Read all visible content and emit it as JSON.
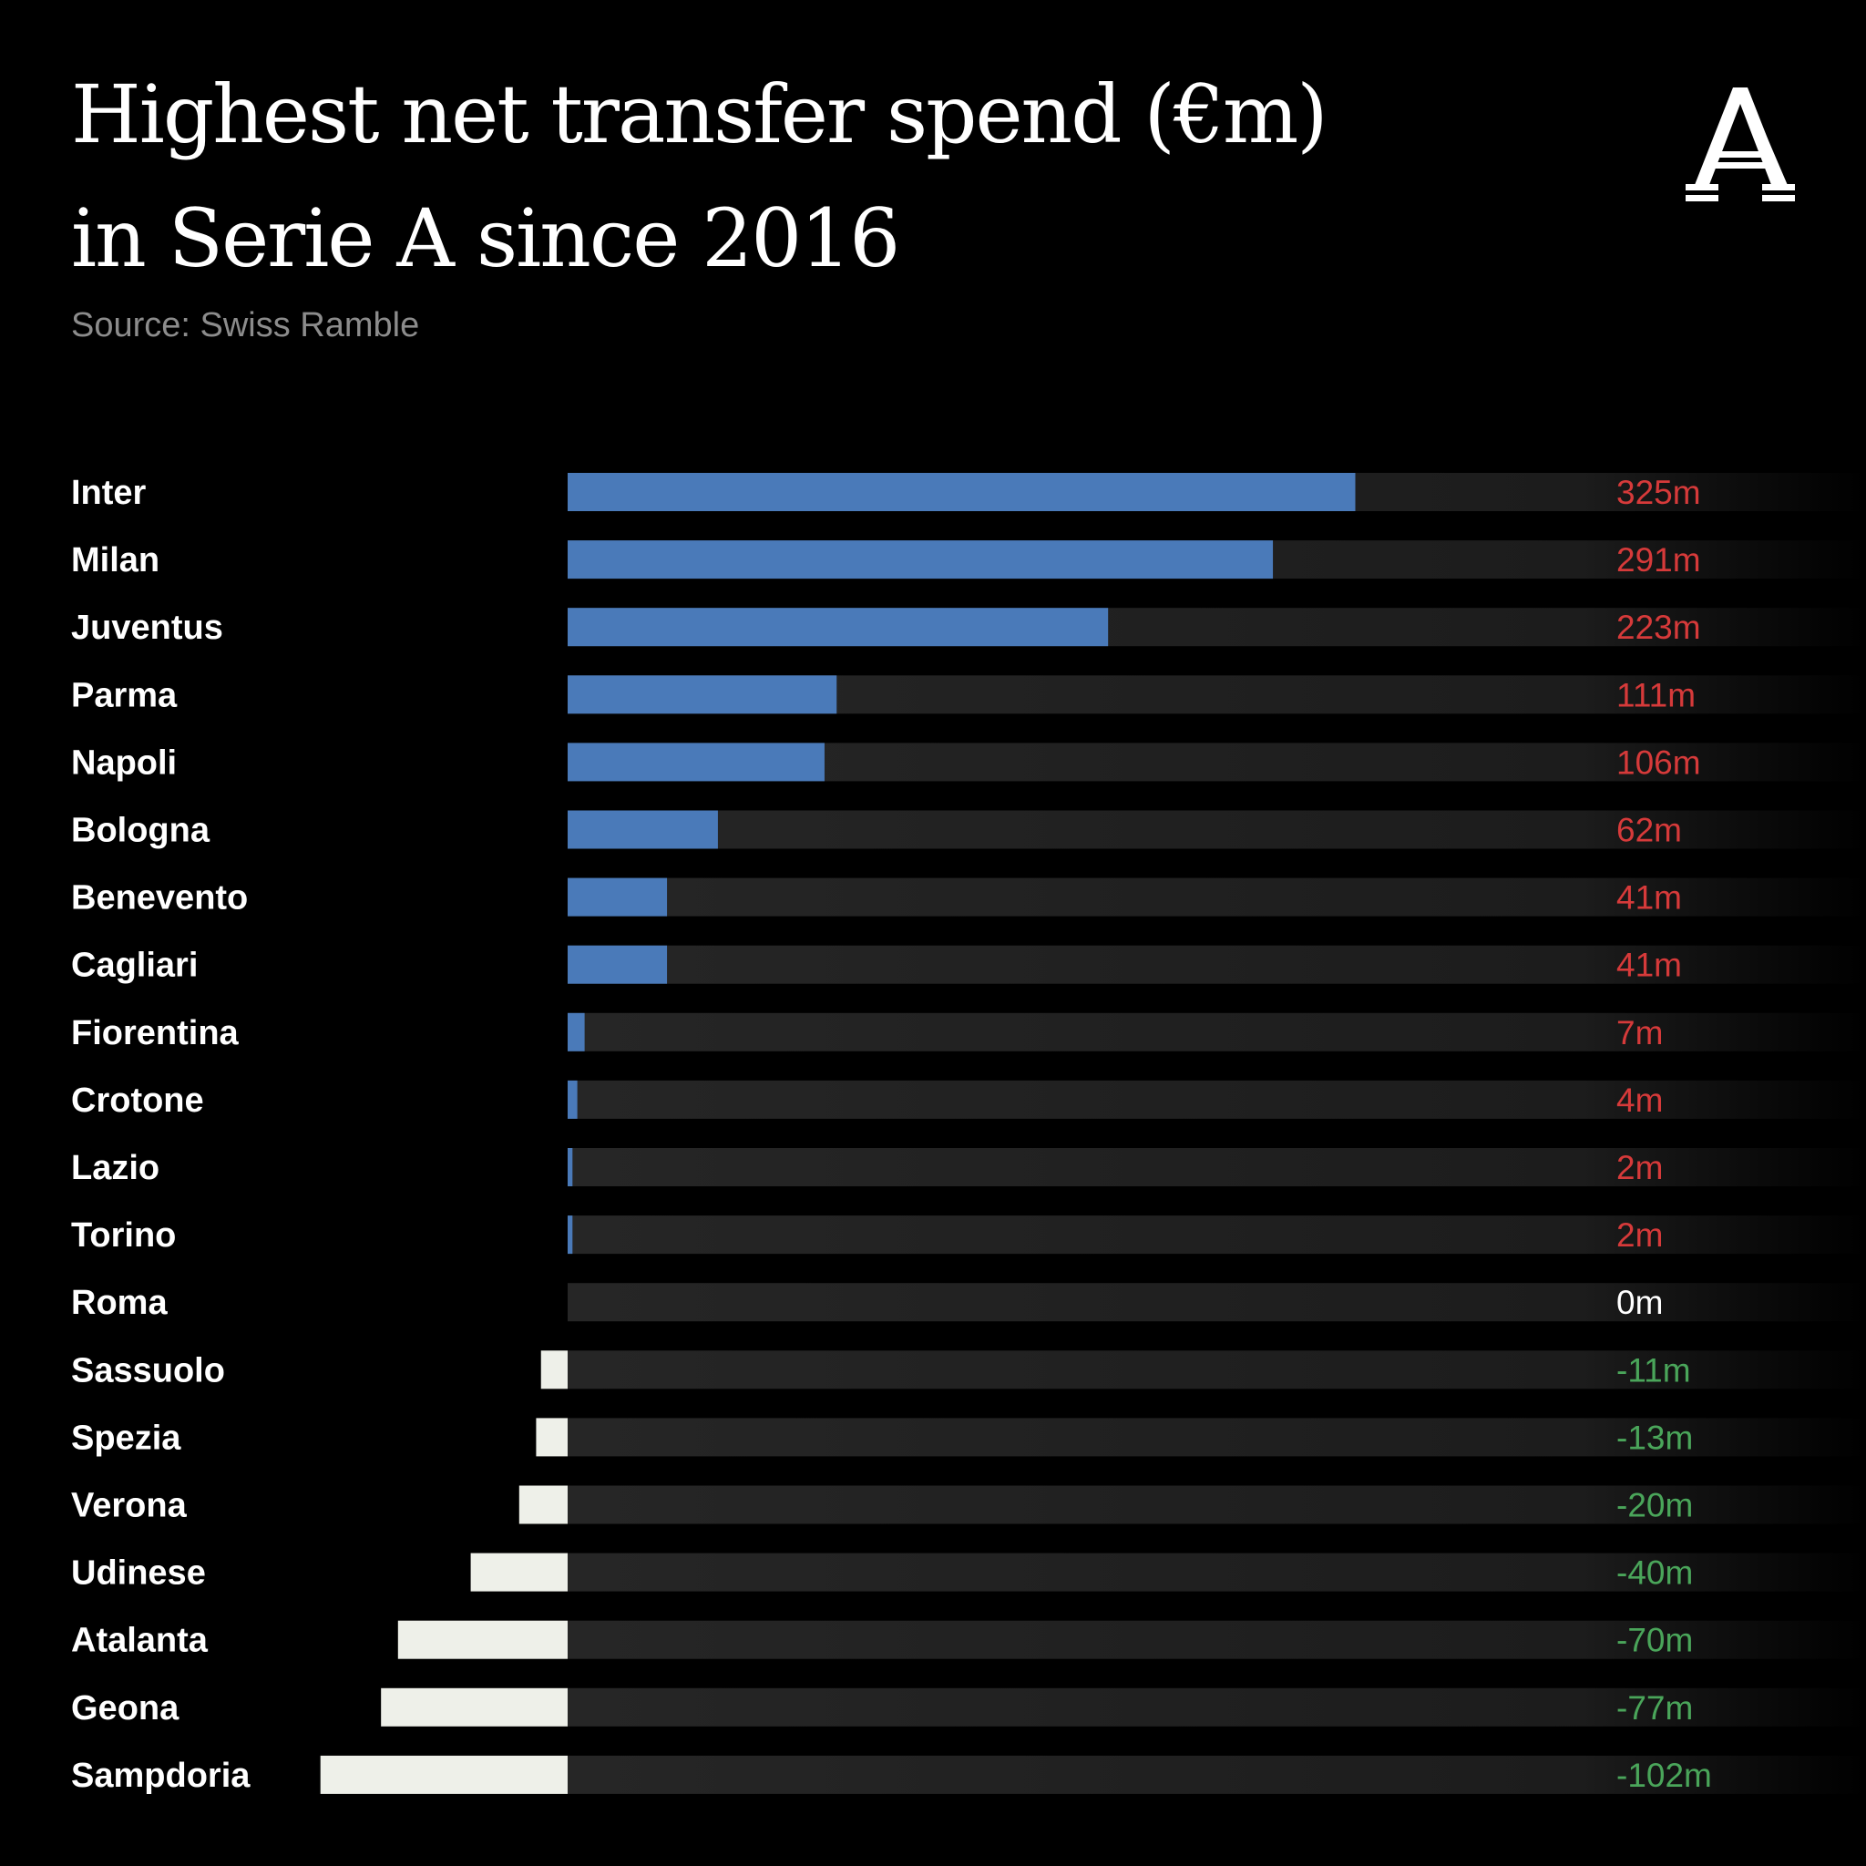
{
  "title_lines": [
    "Highest net transfer spend (€m)",
    "in Serie A since 2016"
  ],
  "source": "Source: Swiss Ramble",
  "logo": {
    "letter": "A",
    "icon": "athletic-a-logo"
  },
  "colors": {
    "background": "#000000",
    "positive_bar": "#4a7ab9",
    "negative_bar": "#eef0e9",
    "track": "#262626",
    "label": "#ffffff",
    "value_positive": "#d63a3a",
    "value_zero": "#ffffff",
    "value_negative": "#4aa55a"
  },
  "chart_data": {
    "type": "bar",
    "orientation": "horizontal",
    "categories": [
      "Inter",
      "Milan",
      "Juventus",
      "Parma",
      "Napoli",
      "Bologna",
      "Benevento",
      "Cagliari",
      "Fiorentina",
      "Crotone",
      "Lazio",
      "Torino",
      "Roma",
      "Sassuolo",
      "Spezia",
      "Verona",
      "Udinese",
      "Atalanta",
      "Geona",
      "Sampdoria"
    ],
    "values": [
      325,
      291,
      223,
      111,
      106,
      62,
      41,
      41,
      7,
      4,
      2,
      2,
      0,
      -11,
      -13,
      -20,
      -40,
      -70,
      -77,
      -102
    ],
    "value_labels": [
      "325m",
      "291m",
      "223m",
      "111m",
      "106m",
      "62m",
      "41m",
      "41m",
      "7m",
      "4m",
      "2m",
      "2m",
      "0m",
      "-11m",
      "-13m",
      "-20m",
      "-40m",
      "-70m",
      "-77m",
      "-102m"
    ],
    "title": "Highest net transfer spend (€m) in Serie A since 2016",
    "xlabel": "",
    "ylabel": "",
    "xlim": [
      -102,
      325
    ],
    "grid": false,
    "legend": "none"
  }
}
